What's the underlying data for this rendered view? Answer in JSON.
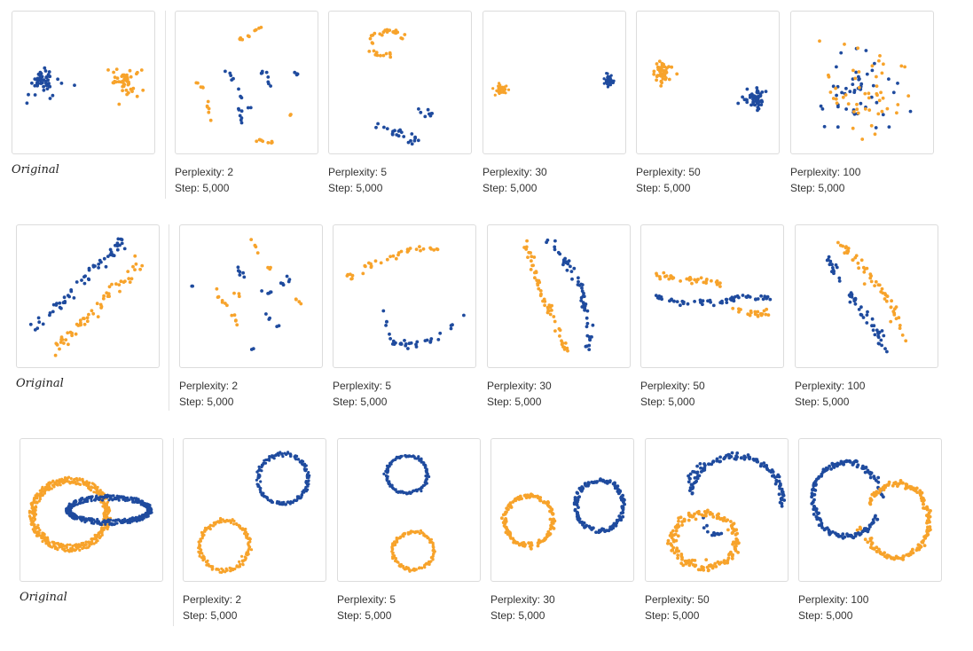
{
  "colors": {
    "orange": "#f7a32b",
    "blue": "#1f4b9e"
  },
  "rows": [
    {
      "original_label": "Original",
      "panels": [
        {
          "perplexity_label": "Perplexity: 2",
          "step_label": "Step: 5,000"
        },
        {
          "perplexity_label": "Perplexity: 5",
          "step_label": "Step: 5,000"
        },
        {
          "perplexity_label": "Perplexity: 30",
          "step_label": "Step: 5,000"
        },
        {
          "perplexity_label": "Perplexity: 50",
          "step_label": "Step: 5,000"
        },
        {
          "perplexity_label": "Perplexity: 100",
          "step_label": "Step: 5,000"
        }
      ]
    },
    {
      "original_label": "Original",
      "panels": [
        {
          "perplexity_label": "Perplexity: 2",
          "step_label": "Step: 5,000"
        },
        {
          "perplexity_label": "Perplexity: 5",
          "step_label": "Step: 5,000"
        },
        {
          "perplexity_label": "Perplexity: 30",
          "step_label": "Step: 5,000"
        },
        {
          "perplexity_label": "Perplexity: 50",
          "step_label": "Step: 5,000"
        },
        {
          "perplexity_label": "Perplexity: 100",
          "step_label": "Step: 5,000"
        }
      ]
    },
    {
      "original_label": "Original",
      "panels": [
        {
          "perplexity_label": "Perplexity: 2",
          "step_label": "Step: 5,000"
        },
        {
          "perplexity_label": "Perplexity: 5",
          "step_label": "Step: 5,000"
        },
        {
          "perplexity_label": "Perplexity: 30",
          "step_label": "Step: 5,000"
        },
        {
          "perplexity_label": "Perplexity: 50",
          "step_label": "Step: 5,000"
        },
        {
          "perplexity_label": "Perplexity: 100",
          "step_label": "Step: 5,000"
        }
      ]
    }
  ],
  "chart_data": {
    "type": "scatter",
    "grid": false,
    "series": [
      {
        "color": "blue"
      },
      {
        "color": "orange"
      }
    ],
    "perplexity": [
      2,
      5,
      30,
      50,
      100
    ],
    "step": 5000
  }
}
